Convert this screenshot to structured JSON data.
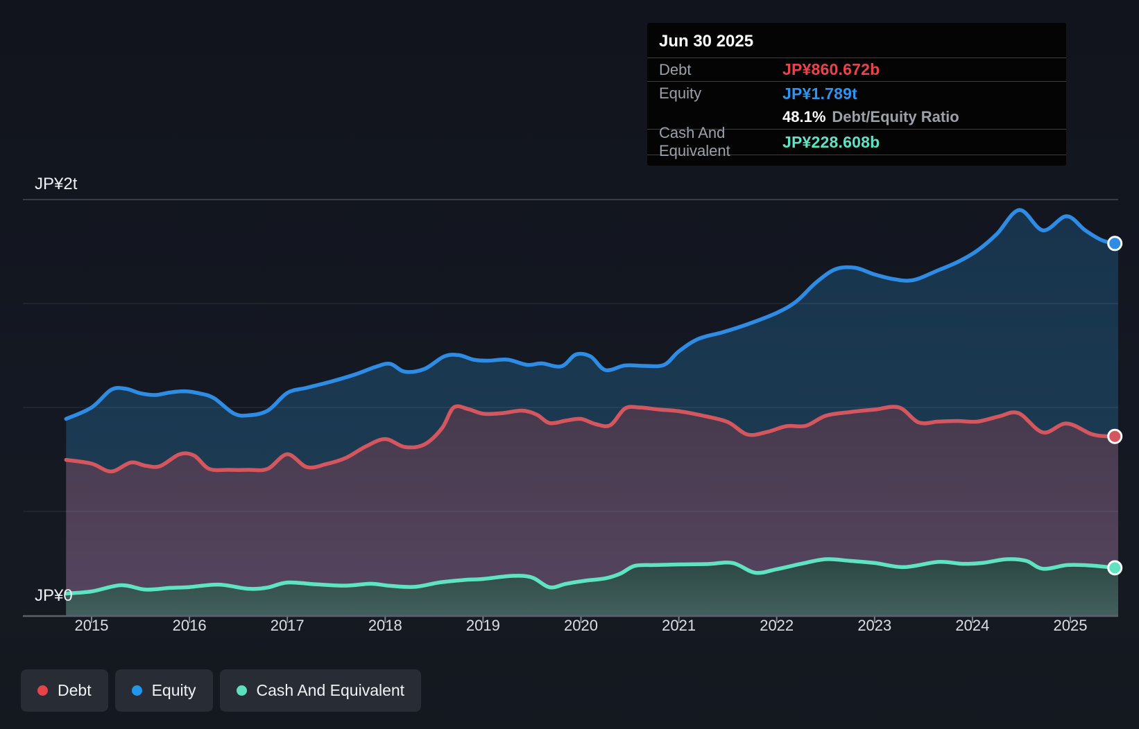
{
  "page": {
    "background": "#141822"
  },
  "tooltip": {
    "date": "Jun 30 2025",
    "debt_label": "Debt",
    "debt_value": "JP¥860.672b",
    "equity_label": "Equity",
    "equity_value": "JP¥1.789t",
    "ratio_value": "48.1%",
    "ratio_label": "Debt/Equity Ratio",
    "cash_label": "Cash And Equivalent",
    "cash_value": "JP¥228.608b"
  },
  "y_axis": {
    "top_label": "JP¥2t",
    "zero_label": "JP¥0"
  },
  "legend": {
    "debt_label": "Debt",
    "equity_label": "Equity",
    "cash_label": "Cash And Equivalent",
    "debt_color": "#e64449",
    "equity_color": "#2196ea",
    "cash_color": "#5ce0bd"
  },
  "chart_data": {
    "type": "area",
    "title": "Debt to Equity History",
    "unit": "JP¥ trillions",
    "grid": "horizontal",
    "legend_position": "bottom-left",
    "x_ticks": [
      "2015",
      "2016",
      "2017",
      "2018",
      "2019",
      "2020",
      "2021",
      "2022",
      "2023",
      "2024",
      "2025"
    ],
    "x_range": [
      2014.74,
      2025.455
    ],
    "ylim": [
      0,
      2
    ],
    "y_gridlines": [
      0.5,
      1,
      1.5,
      2
    ],
    "y_tick_labels": [
      "JP¥0",
      "JP¥2t"
    ],
    "series": [
      {
        "name": "Equity",
        "color": "#2e8ce4",
        "area_top": "#17344c",
        "area_bottom": "#1f3d56",
        "end_value": "JP¥1.789t",
        "points": [
          [
            2014.74,
            0.945
          ],
          [
            2015.0,
            1.0
          ],
          [
            2015.2,
            1.085
          ],
          [
            2015.35,
            1.09
          ],
          [
            2015.5,
            1.068
          ],
          [
            2015.65,
            1.06
          ],
          [
            2015.8,
            1.072
          ],
          [
            2015.95,
            1.078
          ],
          [
            2016.1,
            1.068
          ],
          [
            2016.25,
            1.045
          ],
          [
            2016.45,
            0.972
          ],
          [
            2016.6,
            0.962
          ],
          [
            2016.8,
            0.985
          ],
          [
            2017.0,
            1.07
          ],
          [
            2017.2,
            1.095
          ],
          [
            2017.45,
            1.125
          ],
          [
            2017.7,
            1.16
          ],
          [
            2017.9,
            1.195
          ],
          [
            2018.05,
            1.21
          ],
          [
            2018.2,
            1.172
          ],
          [
            2018.4,
            1.185
          ],
          [
            2018.6,
            1.245
          ],
          [
            2018.75,
            1.252
          ],
          [
            2018.9,
            1.23
          ],
          [
            2019.05,
            1.225
          ],
          [
            2019.25,
            1.23
          ],
          [
            2019.45,
            1.205
          ],
          [
            2019.6,
            1.212
          ],
          [
            2019.8,
            1.198
          ],
          [
            2019.95,
            1.255
          ],
          [
            2020.1,
            1.245
          ],
          [
            2020.25,
            1.18
          ],
          [
            2020.45,
            1.202
          ],
          [
            2020.65,
            1.2
          ],
          [
            2020.85,
            1.205
          ],
          [
            2021.0,
            1.27
          ],
          [
            2021.2,
            1.33
          ],
          [
            2021.45,
            1.362
          ],
          [
            2021.7,
            1.4
          ],
          [
            2022.0,
            1.455
          ],
          [
            2022.2,
            1.51
          ],
          [
            2022.4,
            1.6
          ],
          [
            2022.6,
            1.665
          ],
          [
            2022.8,
            1.672
          ],
          [
            2023.0,
            1.64
          ],
          [
            2023.2,
            1.617
          ],
          [
            2023.4,
            1.613
          ],
          [
            2023.65,
            1.66
          ],
          [
            2023.85,
            1.7
          ],
          [
            2024.05,
            1.755
          ],
          [
            2024.25,
            1.835
          ],
          [
            2024.48,
            1.95
          ],
          [
            2024.72,
            1.852
          ],
          [
            2024.96,
            1.92
          ],
          [
            2025.15,
            1.853
          ],
          [
            2025.32,
            1.805
          ],
          [
            2025.455,
            1.789
          ]
        ]
      },
      {
        "name": "Debt",
        "color": "#d4575f",
        "area_top": "#473a4d",
        "area_bottom": "#564560",
        "end_value": "JP¥860.672b",
        "points": [
          [
            2014.74,
            0.748
          ],
          [
            2015.0,
            0.73
          ],
          [
            2015.2,
            0.692
          ],
          [
            2015.4,
            0.735
          ],
          [
            2015.55,
            0.72
          ],
          [
            2015.7,
            0.718
          ],
          [
            2015.9,
            0.775
          ],
          [
            2016.05,
            0.768
          ],
          [
            2016.2,
            0.705
          ],
          [
            2016.4,
            0.7
          ],
          [
            2016.6,
            0.7
          ],
          [
            2016.8,
            0.705
          ],
          [
            2017.0,
            0.775
          ],
          [
            2017.2,
            0.713
          ],
          [
            2017.4,
            0.728
          ],
          [
            2017.6,
            0.758
          ],
          [
            2017.8,
            0.812
          ],
          [
            2018.0,
            0.848
          ],
          [
            2018.2,
            0.81
          ],
          [
            2018.4,
            0.822
          ],
          [
            2018.58,
            0.9
          ],
          [
            2018.7,
            1.0
          ],
          [
            2018.85,
            0.992
          ],
          [
            2019.0,
            0.97
          ],
          [
            2019.2,
            0.973
          ],
          [
            2019.4,
            0.985
          ],
          [
            2019.55,
            0.965
          ],
          [
            2019.68,
            0.925
          ],
          [
            2019.85,
            0.937
          ],
          [
            2020.0,
            0.945
          ],
          [
            2020.15,
            0.92
          ],
          [
            2020.3,
            0.915
          ],
          [
            2020.45,
            0.995
          ],
          [
            2020.6,
            1.0
          ],
          [
            2020.8,
            0.99
          ],
          [
            2021.0,
            0.982
          ],
          [
            2021.25,
            0.96
          ],
          [
            2021.5,
            0.93
          ],
          [
            2021.7,
            0.87
          ],
          [
            2021.9,
            0.882
          ],
          [
            2022.1,
            0.91
          ],
          [
            2022.3,
            0.912
          ],
          [
            2022.5,
            0.96
          ],
          [
            2022.75,
            0.978
          ],
          [
            2023.0,
            0.99
          ],
          [
            2023.25,
            1.0
          ],
          [
            2023.45,
            0.928
          ],
          [
            2023.65,
            0.932
          ],
          [
            2023.85,
            0.935
          ],
          [
            2024.05,
            0.932
          ],
          [
            2024.27,
            0.957
          ],
          [
            2024.47,
            0.973
          ],
          [
            2024.72,
            0.88
          ],
          [
            2024.96,
            0.923
          ],
          [
            2025.21,
            0.873
          ],
          [
            2025.35,
            0.862
          ],
          [
            2025.455,
            0.861
          ]
        ]
      },
      {
        "name": "Cash And Equivalent",
        "color": "#5fe3c1",
        "area_top": "#2b4744",
        "area_bottom": "#42605d",
        "end_value": "JP¥228.608b",
        "points": [
          [
            2014.74,
            0.105
          ],
          [
            2015.0,
            0.115
          ],
          [
            2015.3,
            0.145
          ],
          [
            2015.55,
            0.124
          ],
          [
            2015.8,
            0.132
          ],
          [
            2016.0,
            0.136
          ],
          [
            2016.3,
            0.148
          ],
          [
            2016.6,
            0.128
          ],
          [
            2016.8,
            0.134
          ],
          [
            2017.0,
            0.158
          ],
          [
            2017.3,
            0.149
          ],
          [
            2017.6,
            0.143
          ],
          [
            2017.85,
            0.152
          ],
          [
            2018.05,
            0.142
          ],
          [
            2018.3,
            0.137
          ],
          [
            2018.55,
            0.158
          ],
          [
            2018.8,
            0.17
          ],
          [
            2019.0,
            0.175
          ],
          [
            2019.3,
            0.19
          ],
          [
            2019.5,
            0.182
          ],
          [
            2019.68,
            0.135
          ],
          [
            2019.85,
            0.152
          ],
          [
            2020.05,
            0.167
          ],
          [
            2020.25,
            0.178
          ],
          [
            2020.4,
            0.2
          ],
          [
            2020.55,
            0.238
          ],
          [
            2020.75,
            0.242
          ],
          [
            2021.0,
            0.245
          ],
          [
            2021.3,
            0.247
          ],
          [
            2021.55,
            0.252
          ],
          [
            2021.78,
            0.205
          ],
          [
            2022.0,
            0.222
          ],
          [
            2022.25,
            0.248
          ],
          [
            2022.5,
            0.27
          ],
          [
            2022.75,
            0.262
          ],
          [
            2023.0,
            0.252
          ],
          [
            2023.3,
            0.232
          ],
          [
            2023.65,
            0.257
          ],
          [
            2023.9,
            0.248
          ],
          [
            2024.1,
            0.252
          ],
          [
            2024.35,
            0.27
          ],
          [
            2024.55,
            0.262
          ],
          [
            2024.72,
            0.224
          ],
          [
            2024.97,
            0.242
          ],
          [
            2025.2,
            0.24
          ],
          [
            2025.455,
            0.2286
          ]
        ]
      }
    ]
  }
}
